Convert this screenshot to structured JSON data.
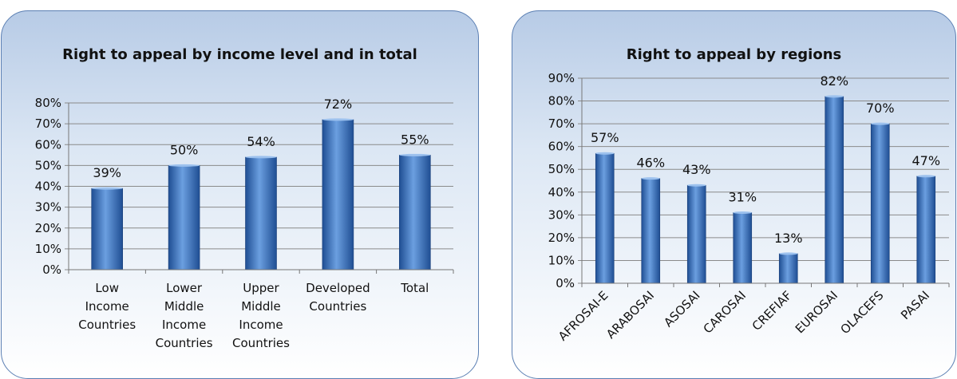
{
  "chart_data": [
    {
      "type": "bar",
      "title": "Right to appeal by income level and in total",
      "categories": [
        "Low Income Countries",
        "Lower Middle Income Countries",
        "Upper Middle Income Countries",
        "Developed Countries",
        "Total"
      ],
      "category_lines": [
        [
          "Low",
          "Income",
          "Countries"
        ],
        [
          "Lower",
          "Middle",
          "Income",
          "Countries"
        ],
        [
          "Upper",
          "Middle",
          "Income",
          "Countries"
        ],
        [
          "Developed",
          "Countries"
        ],
        [
          "Total"
        ]
      ],
      "values": [
        39,
        50,
        54,
        72,
        55
      ],
      "value_labels": [
        "39%",
        "50%",
        "54%",
        "72%",
        "55%"
      ],
      "ylim": [
        0,
        80
      ],
      "yticks": [
        "0%",
        "10%",
        "20%",
        "30%",
        "40%",
        "50%",
        "60%",
        "70%",
        "80%"
      ],
      "xlabel": "",
      "ylabel": "",
      "grid": true,
      "colors": {
        "bar_light": "#6b9fe0",
        "bar_dark": "#1f4e93",
        "grid": "#8a8a8a"
      }
    },
    {
      "type": "bar",
      "title": "Right to appeal by regions",
      "categories": [
        "AFROSAI-E",
        "ARABOSAI",
        "ASOSAI",
        "CAROSAI",
        "CREFIAF",
        "EUROSAI",
        "OLACEFS",
        "PASAI"
      ],
      "values": [
        57,
        46,
        43,
        31,
        13,
        82,
        70,
        47
      ],
      "value_labels": [
        "57%",
        "46%",
        "43%",
        "31%",
        "13%",
        "82%",
        "70%",
        "47%"
      ],
      "ylim": [
        0,
        90
      ],
      "yticks": [
        "0%",
        "10%",
        "20%",
        "30%",
        "40%",
        "50%",
        "60%",
        "70%",
        "80%",
        "90%"
      ],
      "xlabel": "",
      "ylabel": "",
      "grid": true,
      "colors": {
        "bar_light": "#6b9fe0",
        "bar_dark": "#1f4e93",
        "grid": "#8a8a8a"
      }
    }
  ]
}
